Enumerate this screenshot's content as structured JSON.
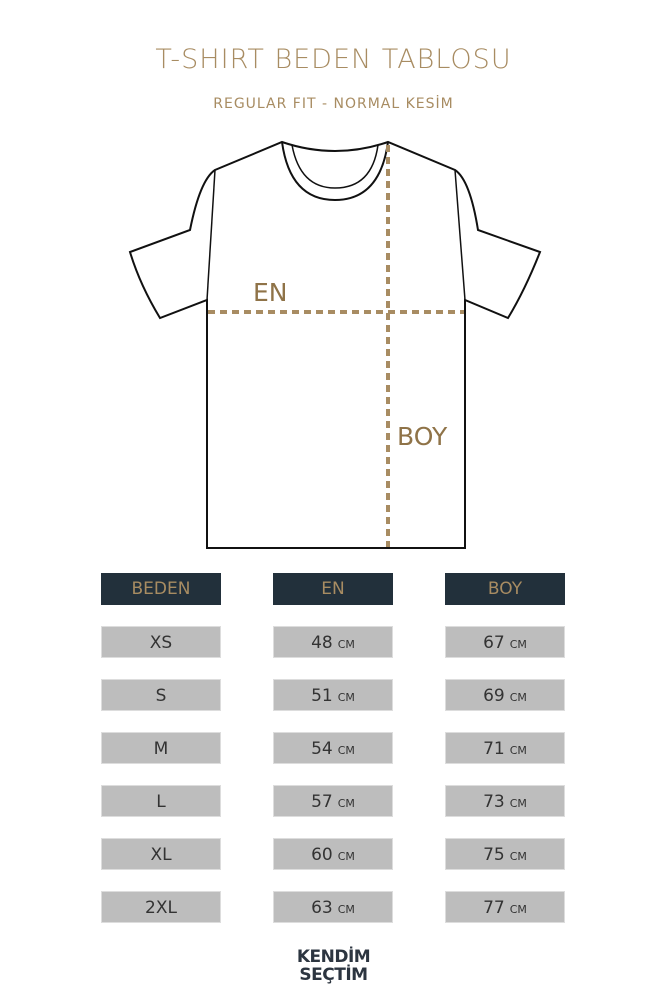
{
  "title": "T-SHIRT BEDEN TABLOSU",
  "subtitle": "REGULAR FIT - NORMAL KESİM",
  "diagram": {
    "width_label": "EN",
    "length_label": "BOY",
    "accent": "#a88c62"
  },
  "table": {
    "headers": [
      "BEDEN",
      "EN",
      "BOY"
    ],
    "unit": "CM",
    "rows": [
      {
        "size": "XS",
        "en": "48",
        "boy": "67"
      },
      {
        "size": "S",
        "en": "51",
        "boy": "69"
      },
      {
        "size": "M",
        "en": "54",
        "boy": "71"
      },
      {
        "size": "L",
        "en": "57",
        "boy": "73"
      },
      {
        "size": "XL",
        "en": "60",
        "boy": "75"
      },
      {
        "size": "2XL",
        "en": "63",
        "boy": "77"
      }
    ]
  },
  "logo": {
    "line1": "KENDİM",
    "line2": "SEÇTİM"
  }
}
